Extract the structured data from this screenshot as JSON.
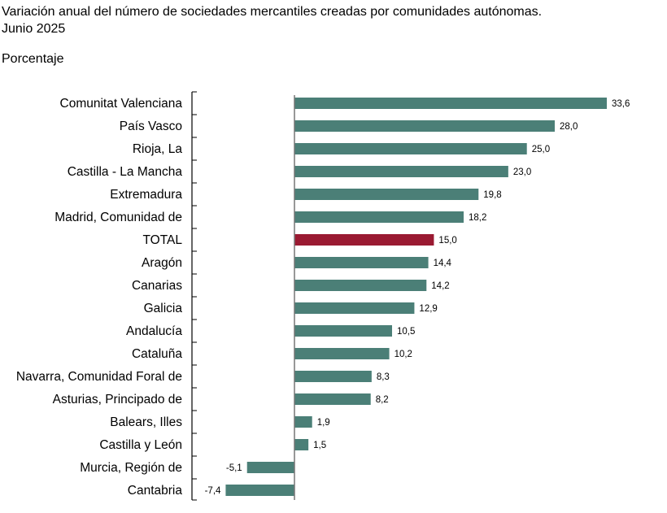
{
  "chart_data": {
    "type": "bar",
    "orientation": "horizontal",
    "title": "Variación anual del número de sociedades mercantiles creadas por comunidades autónomas.",
    "subtitle": "Junio 2025",
    "ylabel": "Porcentaje",
    "categories": [
      "Comunitat Valenciana",
      "País Vasco",
      "Rioja, La",
      "Castilla - La Mancha",
      "Extremadura",
      "Madrid, Comunidad de",
      "TOTAL",
      "Aragón",
      "Canarias",
      "Galicia",
      "Andalucía",
      "Cataluña",
      "Navarra, Comunidad Foral de",
      "Asturias, Principado de",
      "Balears, Illes",
      "Castilla y León",
      "Murcia, Región de",
      "Cantabria"
    ],
    "values": [
      33.6,
      28.0,
      25.0,
      23.0,
      19.8,
      18.2,
      15.0,
      14.4,
      14.2,
      12.9,
      10.5,
      10.2,
      8.3,
      8.2,
      1.9,
      1.5,
      -5.1,
      -7.4
    ],
    "value_labels": [
      "33,6",
      "28,0",
      "25,0",
      "23,0",
      "19,8",
      "18,2",
      "15,0",
      "14,4",
      "14,2",
      "12,9",
      "10,5",
      "10,2",
      "8,3",
      "8,2",
      "1,9",
      "1,5",
      "-5,1",
      "-7,4"
    ],
    "highlight": "TOTAL",
    "colors": {
      "bar": "#4b7f77",
      "highlight": "#9a1a32"
    },
    "grid": false,
    "legend": "none"
  }
}
